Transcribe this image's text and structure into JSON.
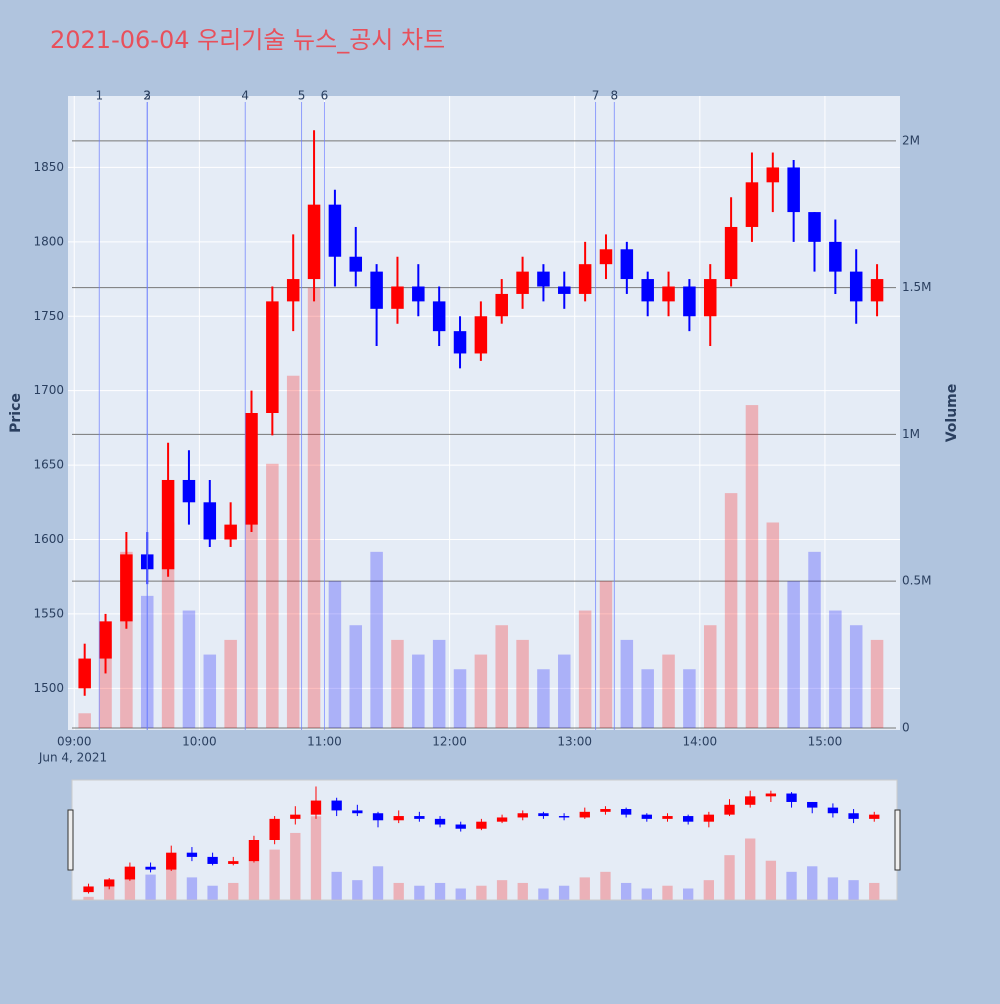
{
  "chart_data": {
    "type": "candlestick",
    "title": "2021-06-04 우리기술 뉴스_공시 차트",
    "y_label": "Price",
    "y2_label": "Volume",
    "x_date_label": "Jun 4, 2021",
    "increasing_color": "#ff0000",
    "decreasing_color": "#0000ff",
    "x": [
      "2021-06-04 09:00",
      "2021-06-04 09:10",
      "2021-06-04 09:20",
      "2021-06-04 09:30",
      "2021-06-04 09:40",
      "2021-06-04 09:50",
      "2021-06-04 10:00",
      "2021-06-04 10:10",
      "2021-06-04 10:20",
      "2021-06-04 10:30",
      "2021-06-04 10:40",
      "2021-06-04 10:50",
      "2021-06-04 11:00",
      "2021-06-04 11:10",
      "2021-06-04 11:20",
      "2021-06-04 11:30",
      "2021-06-04 11:40",
      "2021-06-04 11:50",
      "2021-06-04 12:00",
      "2021-06-04 12:10",
      "2021-06-04 12:20",
      "2021-06-04 12:30",
      "2021-06-04 12:40",
      "2021-06-04 12:50",
      "2021-06-04 13:00",
      "2021-06-04 13:10",
      "2021-06-04 13:20",
      "2021-06-04 13:30",
      "2021-06-04 13:40",
      "2021-06-04 13:50",
      "2021-06-04 14:00",
      "2021-06-04 14:10",
      "2021-06-04 14:20",
      "2021-06-04 14:30",
      "2021-06-04 14:40",
      "2021-06-04 14:50",
      "2021-06-04 15:00",
      "2021-06-04 15:10",
      "2021-06-04 15:20"
    ],
    "open": [
      1500,
      1520,
      1545,
      1590,
      1580,
      1640,
      1625,
      1600,
      1610,
      1685,
      1760,
      1775,
      1825,
      1790,
      1780,
      1755,
      1770,
      1760,
      1740,
      1725,
      1750,
      1765,
      1780,
      1770,
      1765,
      1785,
      1795,
      1775,
      1760,
      1770,
      1750,
      1775,
      1810,
      1840,
      1850,
      1820,
      1800,
      1780,
      1760
    ],
    "high": [
      1530,
      1550,
      1605,
      1605,
      1665,
      1660,
      1640,
      1625,
      1700,
      1770,
      1805,
      1875,
      1835,
      1810,
      1785,
      1790,
      1785,
      1770,
      1750,
      1760,
      1775,
      1790,
      1785,
      1780,
      1800,
      1805,
      1800,
      1780,
      1780,
      1775,
      1785,
      1830,
      1860,
      1860,
      1855,
      1820,
      1815,
      1795,
      1785
    ],
    "low": [
      1495,
      1510,
      1540,
      1570,
      1575,
      1610,
      1595,
      1595,
      1605,
      1670,
      1740,
      1760,
      1770,
      1770,
      1730,
      1745,
      1750,
      1730,
      1715,
      1720,
      1745,
      1755,
      1760,
      1755,
      1760,
      1775,
      1765,
      1750,
      1750,
      1740,
      1730,
      1770,
      1800,
      1820,
      1800,
      1780,
      1765,
      1745,
      1750
    ],
    "close": [
      1520,
      1545,
      1590,
      1580,
      1640,
      1625,
      1600,
      1610,
      1685,
      1760,
      1775,
      1825,
      1790,
      1780,
      1755,
      1770,
      1760,
      1740,
      1725,
      1750,
      1765,
      1780,
      1770,
      1765,
      1785,
      1795,
      1775,
      1760,
      1770,
      1750,
      1775,
      1810,
      1840,
      1850,
      1820,
      1800,
      1780,
      1760,
      1775
    ],
    "volume": [
      50000,
      300000,
      600000,
      450000,
      700000,
      400000,
      250000,
      300000,
      700000,
      900000,
      1200000,
      1500000,
      500000,
      350000,
      600000,
      300000,
      250000,
      300000,
      200000,
      250000,
      350000,
      300000,
      200000,
      250000,
      400000,
      500000,
      300000,
      200000,
      250000,
      200000,
      350000,
      800000,
      1100000,
      700000,
      500000,
      600000,
      400000,
      350000,
      300000
    ],
    "xlim": [
      "2021-06-04 08:57",
      "2021-06-04 15:36"
    ],
    "xticks": [
      {
        "value": "2021-06-04 09:00",
        "label": "09:00"
      },
      {
        "value": "2021-06-04 10:00",
        "label": "10:00"
      },
      {
        "value": "2021-06-04 11:00",
        "label": "11:00"
      },
      {
        "value": "2021-06-04 12:00",
        "label": "12:00"
      },
      {
        "value": "2021-06-04 13:00",
        "label": "13:00"
      },
      {
        "value": "2021-06-04 14:00",
        "label": "14:00"
      },
      {
        "value": "2021-06-04 15:00",
        "label": "15:00"
      }
    ],
    "ylim": [
      1472,
      1898
    ],
    "yticks": [
      1500,
      1550,
      1600,
      1650,
      1700,
      1750,
      1800,
      1850
    ],
    "y2lim": [
      -7000,
      2153000
    ],
    "y2ticks": [
      0,
      {
        "value": 500000,
        "label": "0.5M"
      },
      {
        "value": 1000000,
        "label": "1M"
      },
      {
        "value": 1500000,
        "label": "1.5M"
      },
      {
        "value": 2000000,
        "label": "2M"
      }
    ],
    "annotations": [
      {
        "x": "2021-06-04 09:12",
        "label": "1"
      },
      {
        "x": "2021-06-04 09:35",
        "label": "2"
      },
      {
        "x": "2021-06-04 09:35",
        "label": "3"
      },
      {
        "x": "2021-06-04 10:22",
        "label": "4"
      },
      {
        "x": "2021-06-04 10:49",
        "label": "5"
      },
      {
        "x": "2021-06-04 11:00",
        "label": "6"
      },
      {
        "x": "2021-06-04 13:10",
        "label": "7"
      },
      {
        "x": "2021-06-04 13:19",
        "label": "8"
      }
    ]
  }
}
